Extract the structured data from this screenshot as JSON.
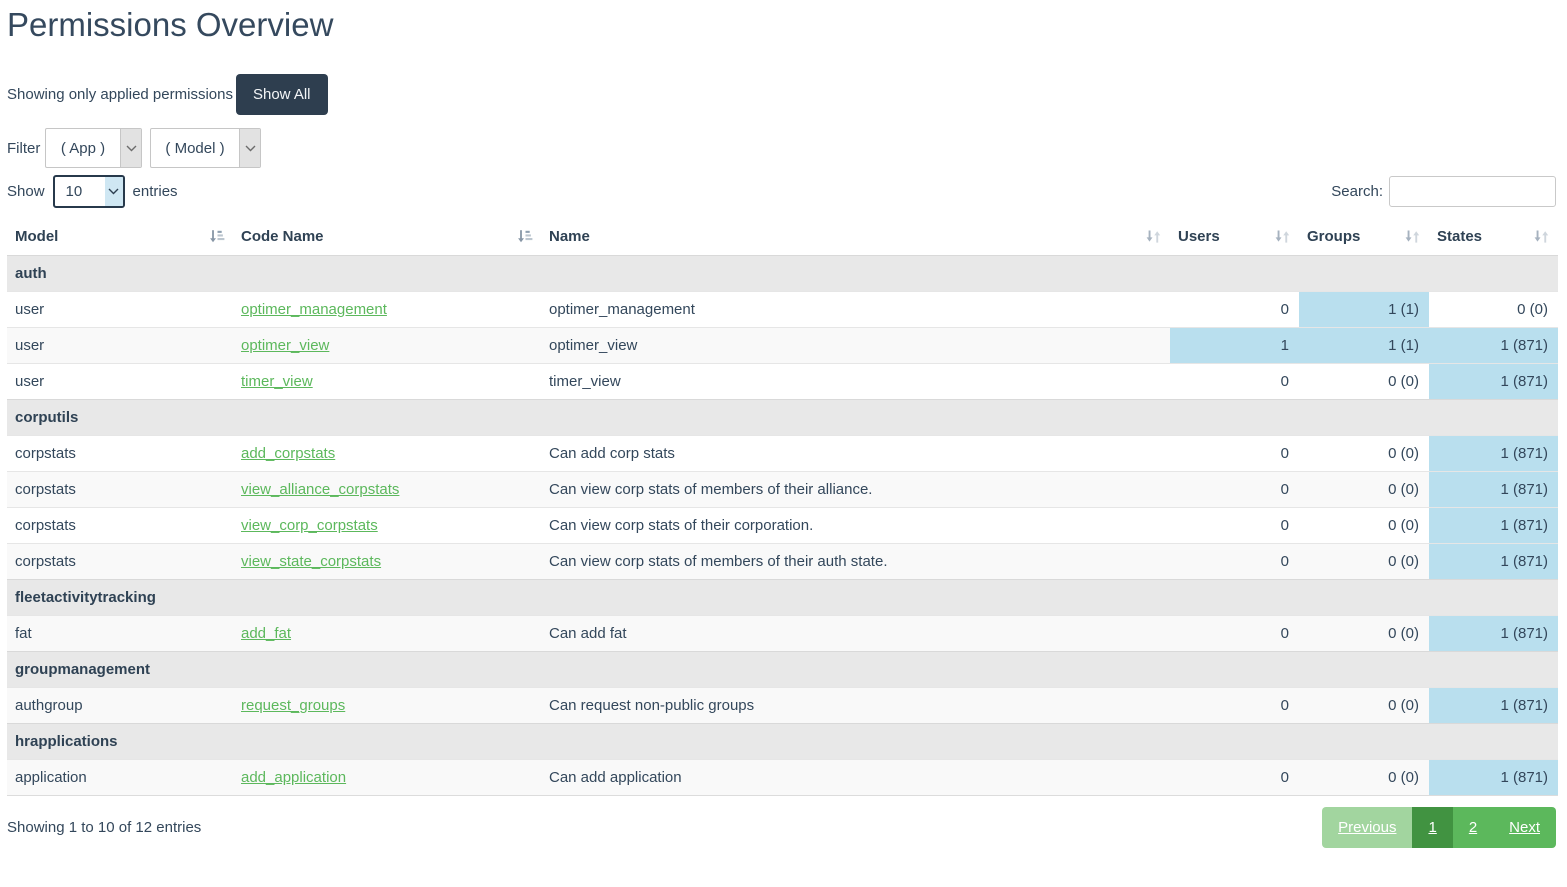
{
  "page": {
    "title": "Permissions Overview"
  },
  "toolbar": {
    "status_text": "Showing only applied permissions",
    "show_all_label": "Show All"
  },
  "filter": {
    "label": "Filter",
    "app_selected": "( App )",
    "model_selected": "( Model )"
  },
  "length_control": {
    "prefix": "Show",
    "selected": "10",
    "suffix": "entries"
  },
  "search": {
    "label": "Search:",
    "value": "",
    "placeholder": ""
  },
  "table": {
    "columns": [
      {
        "label": "Model",
        "sort": "asc"
      },
      {
        "label": "Code Name",
        "sort": "asc"
      },
      {
        "label": "Name",
        "sort": "none"
      },
      {
        "label": "Users",
        "sort": "none"
      },
      {
        "label": "Groups",
        "sort": "none"
      },
      {
        "label": "States",
        "sort": "none"
      }
    ],
    "groups": [
      {
        "name": "auth",
        "rows": [
          {
            "model": "user",
            "code_name": "optimer_management",
            "name": "optimer_management",
            "users": {
              "text": "0",
              "highlight": false
            },
            "groups": {
              "text": "1 (1)",
              "highlight": true
            },
            "states": {
              "text": "0 (0)",
              "highlight": false
            }
          },
          {
            "model": "user",
            "code_name": "optimer_view",
            "name": "optimer_view",
            "users": {
              "text": "1",
              "highlight": true
            },
            "groups": {
              "text": "1 (1)",
              "highlight": true
            },
            "states": {
              "text": "1 (871)",
              "highlight": true
            }
          },
          {
            "model": "user",
            "code_name": "timer_view",
            "name": "timer_view",
            "users": {
              "text": "0",
              "highlight": false
            },
            "groups": {
              "text": "0 (0)",
              "highlight": false
            },
            "states": {
              "text": "1 (871)",
              "highlight": true
            }
          }
        ]
      },
      {
        "name": "corputils",
        "rows": [
          {
            "model": "corpstats",
            "code_name": "add_corpstats",
            "name": "Can add corp stats",
            "users": {
              "text": "0",
              "highlight": false
            },
            "groups": {
              "text": "0 (0)",
              "highlight": false
            },
            "states": {
              "text": "1 (871)",
              "highlight": true
            }
          },
          {
            "model": "corpstats",
            "code_name": "view_alliance_corpstats",
            "name": "Can view corp stats of members of their alliance.",
            "users": {
              "text": "0",
              "highlight": false
            },
            "groups": {
              "text": "0 (0)",
              "highlight": false
            },
            "states": {
              "text": "1 (871)",
              "highlight": true
            }
          },
          {
            "model": "corpstats",
            "code_name": "view_corp_corpstats",
            "name": "Can view corp stats of their corporation.",
            "users": {
              "text": "0",
              "highlight": false
            },
            "groups": {
              "text": "0 (0)",
              "highlight": false
            },
            "states": {
              "text": "1 (871)",
              "highlight": true
            }
          },
          {
            "model": "corpstats",
            "code_name": "view_state_corpstats",
            "name": "Can view corp stats of members of their auth state.",
            "users": {
              "text": "0",
              "highlight": false
            },
            "groups": {
              "text": "0 (0)",
              "highlight": false
            },
            "states": {
              "text": "1 (871)",
              "highlight": true
            }
          }
        ]
      },
      {
        "name": "fleetactivitytracking",
        "rows": [
          {
            "model": "fat",
            "code_name": "add_fat",
            "name": "Can add fat",
            "users": {
              "text": "0",
              "highlight": false
            },
            "groups": {
              "text": "0 (0)",
              "highlight": false
            },
            "states": {
              "text": "1 (871)",
              "highlight": true
            }
          }
        ]
      },
      {
        "name": "groupmanagement",
        "rows": [
          {
            "model": "authgroup",
            "code_name": "request_groups",
            "name": "Can request non-public groups",
            "users": {
              "text": "0",
              "highlight": false
            },
            "groups": {
              "text": "0 (0)",
              "highlight": false
            },
            "states": {
              "text": "1 (871)",
              "highlight": true
            }
          }
        ]
      },
      {
        "name": "hrapplications",
        "rows": [
          {
            "model": "application",
            "code_name": "add_application",
            "name": "Can add application",
            "users": {
              "text": "0",
              "highlight": false
            },
            "groups": {
              "text": "0 (0)",
              "highlight": false
            },
            "states": {
              "text": "1 (871)",
              "highlight": true
            }
          }
        ]
      }
    ]
  },
  "footer": {
    "info": "Showing 1 to 10 of 12 entries",
    "pagination": [
      {
        "label": "Previous",
        "state": "disabled"
      },
      {
        "label": "1",
        "state": "active"
      },
      {
        "label": "2",
        "state": "default"
      },
      {
        "label": "Next",
        "state": "default"
      }
    ]
  },
  "colors": {
    "link_green": "#5cb85c",
    "pagination_active": "#419341",
    "pagination_disabled": "#a2d59f",
    "pagination_default": "#5cb85c",
    "highlight_blue": "#b9dfee",
    "show_all_button_bg": "#2e3e4f",
    "group_header_bg": "#e8e8e8",
    "text_color": "#33475b"
  }
}
